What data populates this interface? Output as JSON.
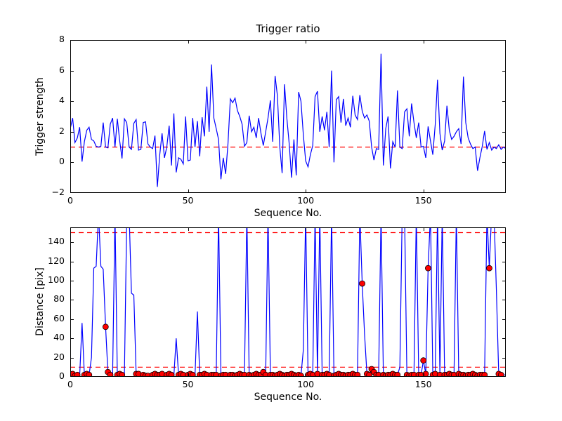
{
  "colors": {
    "line": "#0000ff",
    "threshold": "#ff0000",
    "marker_face": "#ff0000",
    "marker_edge": "#000000",
    "axis": "#000000",
    "background": "#ffffff"
  },
  "chart_data": [
    {
      "type": "line",
      "name": "trigger-ratio",
      "title": "Trigger ratio",
      "xlabel": "Sequence No.",
      "ylabel": "Trigger strength",
      "x": "index",
      "xlim": [
        0,
        185
      ],
      "ylim": [
        -2,
        8
      ],
      "xticks": [
        0,
        50,
        100,
        150
      ],
      "yticks": [
        -2,
        0,
        2,
        4,
        6,
        8
      ],
      "grid": false,
      "legend": null,
      "threshold_lines": [
        1
      ],
      "series": [
        {
          "name": "trigger-strength",
          "color": "#0000ff",
          "y": [
            2.2,
            2.9,
            1.3,
            1.6,
            2.3,
            0.05,
            1.35,
            2.1,
            2.3,
            1.5,
            1.4,
            1.05,
            1.0,
            1.05,
            2.6,
            1.0,
            0.95,
            2.5,
            2.9,
            1.0,
            2.85,
            1.4,
            0.25,
            2.85,
            2.6,
            1.0,
            0.85,
            2.55,
            2.8,
            0.8,
            0.85,
            2.6,
            2.65,
            1.2,
            1.0,
            0.9,
            1.75,
            -1.6,
            0.5,
            1.9,
            0.3,
            1.0,
            2.4,
            -0.2,
            3.2,
            -0.65,
            0.3,
            0.2,
            -0.1,
            3.0,
            0.1,
            0.15,
            2.9,
            1.0,
            2.7,
            0.4,
            2.95,
            1.7,
            4.95,
            2.0,
            6.4,
            2.9,
            2.2,
            1.5,
            -1.1,
            0.3,
            -0.75,
            1.2,
            4.15,
            3.9,
            4.2,
            3.4,
            3.0,
            2.5,
            1.05,
            1.3,
            3.05,
            2.0,
            2.3,
            1.6,
            2.9,
            1.9,
            1.1,
            2.0,
            2.9,
            4.05,
            1.35,
            5.65,
            4.35,
            1.0,
            -0.7,
            5.1,
            2.9,
            1.2,
            -1.0,
            1.5,
            -0.85,
            4.6,
            4.0,
            1.8,
            0.1,
            -0.3,
            0.5,
            1.1,
            4.3,
            4.65,
            2.0,
            3.0,
            2.1,
            3.3,
            1.0,
            6.0,
            0.0,
            4.1,
            4.3,
            2.6,
            4.15,
            2.4,
            2.9,
            2.3,
            4.35,
            3.1,
            2.8,
            4.4,
            3.35,
            2.9,
            3.1,
            2.7,
            1.0,
            0.15,
            0.9,
            0.85,
            7.1,
            -0.2,
            2.2,
            3.0,
            -0.4,
            1.35,
            1.0,
            4.7,
            1.0,
            0.9,
            3.3,
            3.5,
            1.7,
            3.85,
            2.6,
            1.6,
            2.6,
            1.0,
            1.05,
            0.3,
            2.35,
            1.4,
            0.5,
            2.45,
            5.4,
            1.9,
            0.8,
            1.4,
            3.7,
            2.1,
            1.5,
            1.7,
            2.0,
            2.2,
            1.2,
            5.6,
            2.6,
            1.6,
            1.2,
            0.9,
            1.0,
            -0.55,
            0.3,
            1.05,
            2.05,
            0.85,
            1.3,
            0.8,
            1.0,
            0.9,
            1.15,
            0.85,
            1.0,
            0.9
          ]
        }
      ]
    },
    {
      "type": "line",
      "name": "distance",
      "title": "",
      "xlabel": "Sequence No.",
      "ylabel": "Distance [pix]",
      "x": "index",
      "xlim": [
        0,
        185
      ],
      "ylim": [
        0,
        155.5
      ],
      "xticks": [
        0,
        50,
        100,
        150
      ],
      "yticks": [
        0,
        20,
        40,
        60,
        80,
        100,
        120,
        140
      ],
      "grid": false,
      "legend": null,
      "threshold_lines": [
        10,
        150
      ],
      "series": [
        {
          "name": "distance",
          "color": "#0000ff",
          "y": [
            2,
            3,
            1,
            2,
            1,
            56,
            2,
            3,
            2,
            20,
            113,
            115,
            170,
            115,
            112,
            52,
            5,
            2,
            2,
            170,
            2,
            3,
            2,
            2,
            165,
            170,
            87,
            85,
            3,
            3,
            1,
            2,
            1,
            1,
            1,
            2,
            3,
            2,
            2,
            3,
            1,
            2,
            3,
            2,
            1,
            40,
            2,
            3,
            2,
            1,
            2,
            3,
            2,
            1,
            68,
            2,
            2,
            3,
            2,
            1,
            2,
            2,
            2,
            170,
            1,
            2,
            2,
            3,
            2,
            2,
            1,
            2,
            3,
            2,
            2,
            170,
            2,
            1,
            2,
            3,
            2,
            2,
            5,
            2,
            170,
            2,
            2,
            1,
            2,
            3,
            2,
            1,
            2,
            2,
            3,
            2,
            1,
            2,
            1,
            28,
            170,
            2,
            3,
            2,
            168,
            3,
            170,
            2,
            2,
            3,
            2,
            170,
            1,
            2,
            3,
            2,
            2,
            1,
            2,
            2,
            3,
            2,
            2,
            170,
            97,
            45,
            3,
            2,
            8,
            5,
            2,
            2,
            170,
            2,
            1,
            2,
            2,
            3,
            2,
            2,
            10,
            170,
            170,
            2,
            1,
            2,
            2,
            170,
            2,
            2,
            17,
            3,
            113,
            170,
            2,
            3,
            170,
            2,
            170,
            2,
            2,
            3,
            2,
            2,
            170,
            3,
            2,
            2,
            1,
            2,
            2,
            3,
            2,
            1,
            2,
            2,
            2,
            170,
            113,
            172,
            170,
            90,
            3,
            2,
            2,
            2
          ]
        }
      ],
      "markers": {
        "name": "match-markers",
        "color": "#ff0000",
        "indices": [
          0,
          1,
          2,
          3,
          6,
          7,
          8,
          15,
          16,
          17,
          20,
          21,
          22,
          28,
          29,
          31,
          32,
          33,
          35,
          36,
          37,
          38,
          39,
          41,
          42,
          43,
          46,
          47,
          48,
          50,
          51,
          52,
          55,
          56,
          57,
          58,
          60,
          61,
          62,
          64,
          65,
          66,
          68,
          69,
          70,
          71,
          72,
          73,
          74,
          76,
          77,
          78,
          79,
          80,
          81,
          82,
          83,
          85,
          86,
          87,
          88,
          89,
          90,
          91,
          92,
          93,
          94,
          95,
          96,
          97,
          98,
          101,
          102,
          103,
          105,
          107,
          108,
          109,
          110,
          112,
          113,
          114,
          115,
          116,
          117,
          118,
          119,
          120,
          121,
          122,
          124,
          126,
          127,
          128,
          129,
          130,
          131,
          133,
          134,
          135,
          136,
          137,
          138,
          139,
          143,
          144,
          145,
          146,
          148,
          149,
          150,
          151,
          152,
          154,
          155,
          157,
          159,
          160,
          161,
          162,
          163,
          165,
          166,
          167,
          168,
          169,
          170,
          171,
          172,
          173,
          174,
          175,
          176,
          178,
          182,
          183
        ]
      }
    }
  ]
}
